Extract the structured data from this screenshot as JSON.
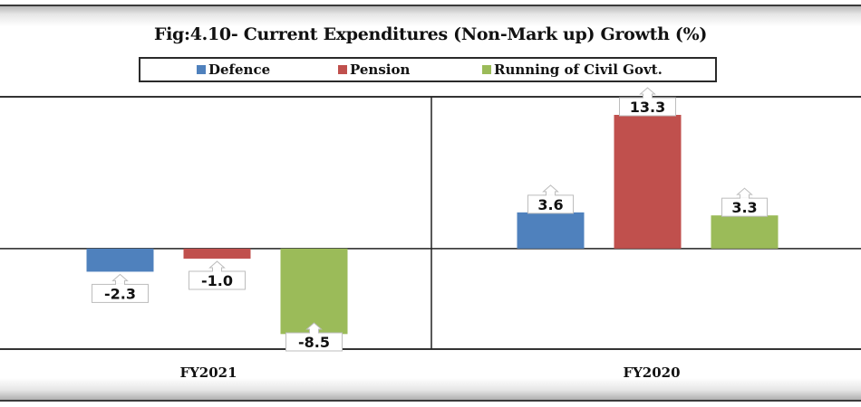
{
  "chart_data": {
    "type": "bar",
    "title": "Fig:4.10- Current Expenditures (Non-Mark up) Growth (%)",
    "xlabel": "",
    "ylabel": "",
    "categories": [
      "FY2021",
      "FY2020"
    ],
    "series": [
      {
        "name": "Defence",
        "color": "#4F81BD",
        "values": [
          -2.3,
          3.6
        ],
        "labels": [
          "-2.3",
          "3.6"
        ]
      },
      {
        "name": "Pension",
        "color": "#C0504D",
        "values": [
          -1.0,
          13.3
        ],
        "labels": [
          "-1.0",
          "13.3"
        ]
      },
      {
        "name": "Running of Civil Govt.",
        "color": "#9BBB59",
        "values": [
          -8.5,
          3.3
        ],
        "labels": [
          "-8.5",
          "3.3"
        ]
      }
    ],
    "ylim": [
      -10,
      15.1
    ],
    "grid": false,
    "y_axis_visible": false,
    "legend_position": "top",
    "data_labels": true
  }
}
